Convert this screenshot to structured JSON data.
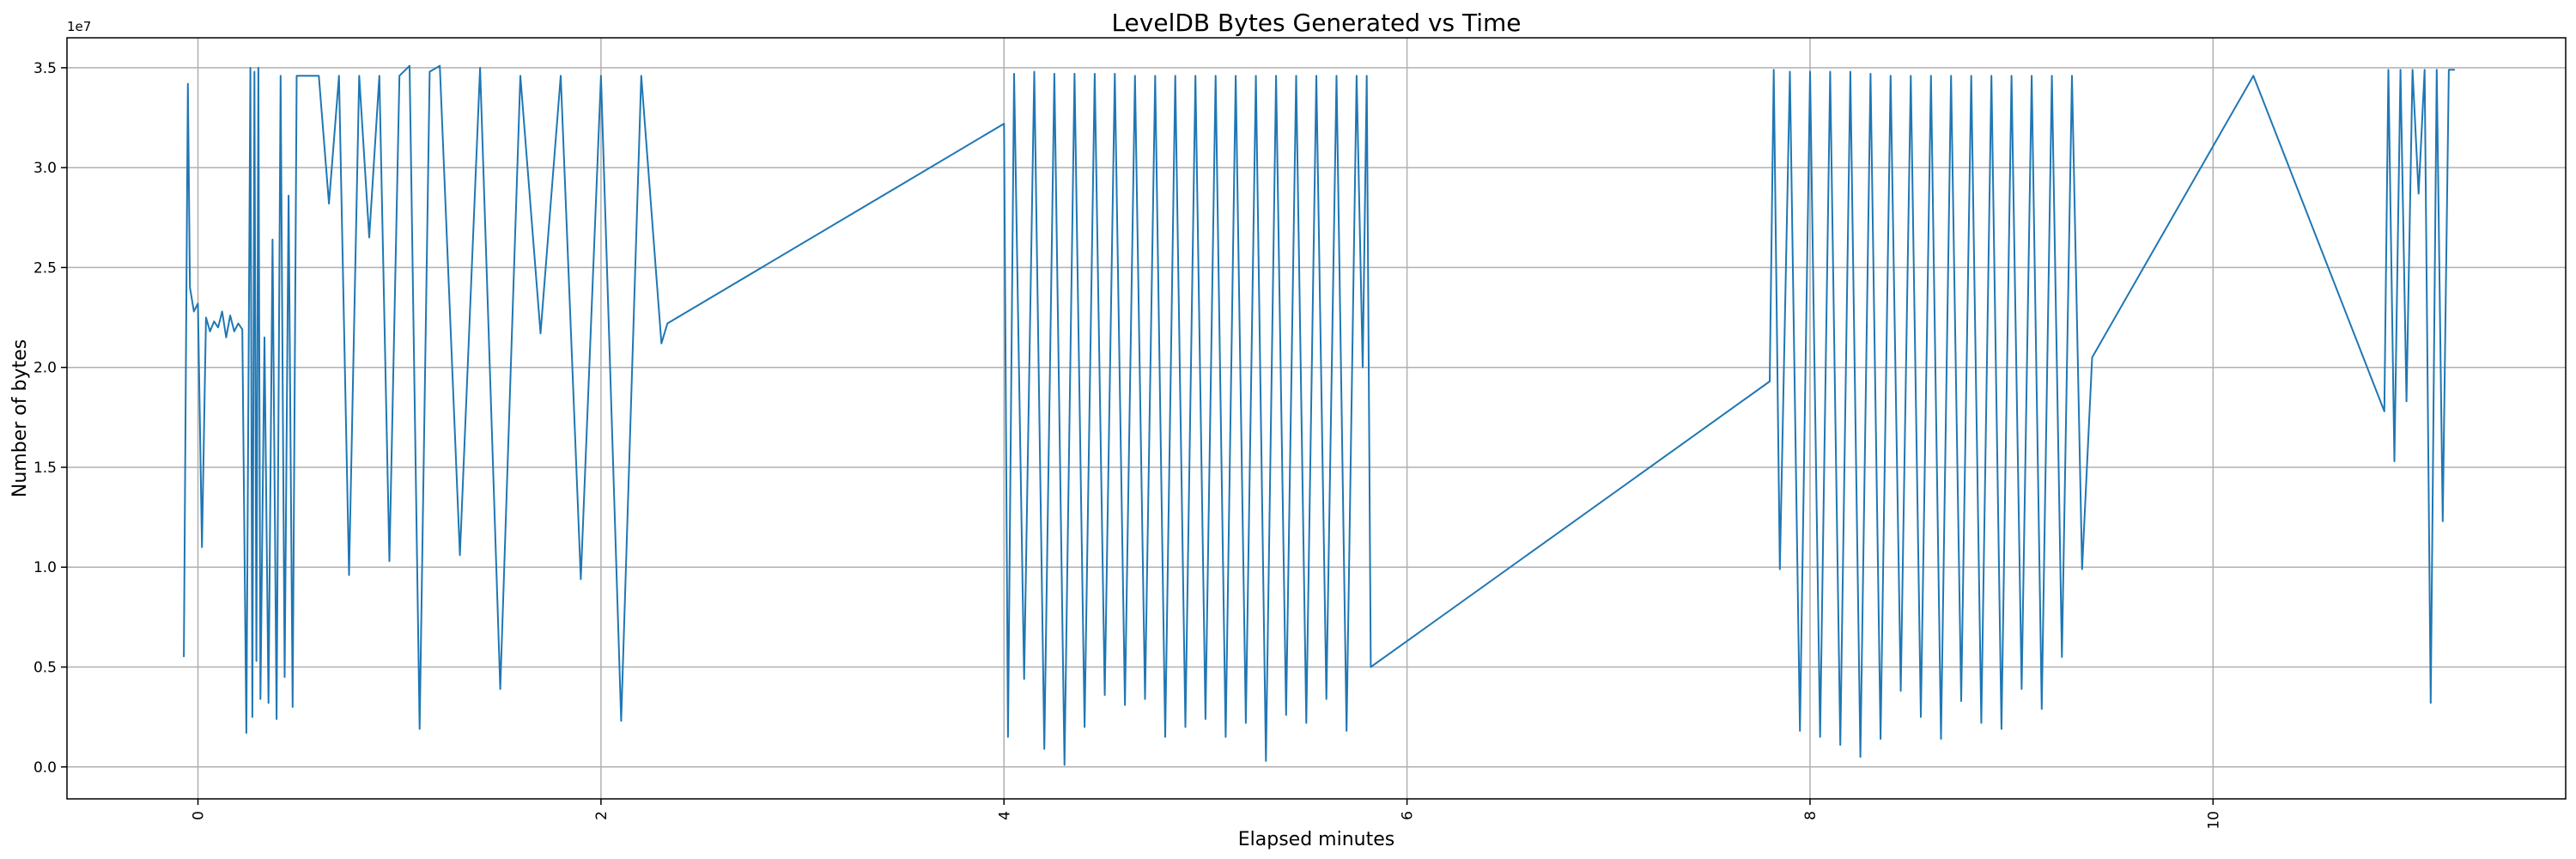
{
  "chart_data": {
    "type": "line",
    "title": "LevelDB Bytes Generated vs Time",
    "xlabel": "Elapsed minutes",
    "ylabel": "Number of bytes",
    "y_offset_label": "1e7",
    "xlim": [
      -0.65,
      11.75
    ],
    "ylim": [
      -1600000,
      36500000
    ],
    "x_ticks": [
      0,
      2,
      4,
      6,
      8,
      10
    ],
    "x_tick_labels": [
      "0",
      "2",
      "4",
      "6",
      "8",
      "10"
    ],
    "y_ticks": [
      0,
      5000000,
      10000000,
      15000000,
      20000000,
      25000000,
      30000000,
      35000000
    ],
    "y_tick_labels": [
      "0.0",
      "0.5",
      "1.0",
      "1.5",
      "2.0",
      "2.5",
      "3.0",
      "3.5"
    ],
    "grid": true,
    "line_color": "#1f77b4",
    "series": [
      {
        "name": "",
        "x": [
          -0.07,
          -0.05,
          -0.04,
          -0.02,
          0.0,
          0.02,
          0.04,
          0.06,
          0.08,
          0.1,
          0.12,
          0.14,
          0.16,
          0.18,
          0.2,
          0.22,
          0.24,
          0.26,
          0.27,
          0.28,
          0.29,
          0.3,
          0.31,
          0.33,
          0.35,
          0.37,
          0.39,
          0.41,
          0.43,
          0.45,
          0.47,
          0.49,
          0.51,
          0.53,
          0.55,
          0.6,
          0.65,
          0.7,
          0.75,
          0.8,
          0.85,
          0.9,
          0.95,
          1.0,
          1.05,
          1.1,
          1.15,
          1.2,
          1.3,
          1.4,
          1.5,
          1.6,
          1.7,
          1.8,
          1.9,
          2.0,
          2.1,
          2.2,
          2.3,
          2.33,
          4.0,
          4.02,
          4.05,
          4.1,
          4.15,
          4.2,
          4.25,
          4.3,
          4.35,
          4.4,
          4.45,
          4.5,
          4.55,
          4.6,
          4.65,
          4.7,
          4.75,
          4.8,
          4.85,
          4.9,
          4.95,
          5.0,
          5.05,
          5.1,
          5.15,
          5.2,
          5.25,
          5.3,
          5.35,
          5.4,
          5.45,
          5.5,
          5.55,
          5.6,
          5.65,
          5.7,
          5.75,
          5.78,
          5.8,
          5.82,
          7.8,
          7.82,
          7.85,
          7.9,
          7.95,
          8.0,
          8.05,
          8.1,
          8.15,
          8.2,
          8.25,
          8.3,
          8.35,
          8.4,
          8.45,
          8.5,
          8.55,
          8.6,
          8.65,
          8.7,
          8.75,
          8.8,
          8.85,
          8.9,
          8.95,
          9.0,
          9.05,
          9.1,
          9.15,
          9.2,
          9.25,
          9.3,
          9.35,
          9.4,
          10.2,
          10.85,
          10.87,
          10.9,
          10.93,
          10.96,
          10.99,
          11.02,
          11.05,
          11.08,
          11.11,
          11.14,
          11.17,
          11.2
        ],
        "values": [
          5500000,
          34200000,
          24000000,
          22800000,
          23200000,
          11000000,
          22500000,
          21800000,
          22300000,
          22000000,
          22800000,
          21500000,
          22600000,
          21800000,
          22200000,
          21900000,
          1700000,
          35000000,
          2500000,
          34800000,
          5300000,
          35000000,
          3400000,
          21500000,
          3200000,
          26400000,
          2400000,
          34600000,
          4500000,
          28600000,
          3000000,
          34600000,
          34600000,
          34600000,
          34600000,
          34600000,
          28200000,
          34600000,
          9600000,
          34600000,
          26500000,
          34600000,
          10300000,
          34600000,
          35100000,
          1900000,
          34800000,
          35100000,
          10600000,
          35000000,
          3900000,
          34600000,
          21700000,
          34600000,
          9400000,
          34600000,
          2300000,
          34600000,
          21200000,
          22200000,
          32200000,
          1500000,
          34700000,
          4400000,
          34800000,
          900000,
          34700000,
          100000,
          34700000,
          2000000,
          34700000,
          3600000,
          34700000,
          3100000,
          34600000,
          3400000,
          34600000,
          1500000,
          34600000,
          2000000,
          34600000,
          2400000,
          34600000,
          1500000,
          34600000,
          2200000,
          34600000,
          300000,
          34600000,
          2600000,
          34600000,
          2200000,
          34600000,
          3400000,
          34600000,
          1800000,
          34600000,
          20000000,
          34600000,
          5000000,
          19300000,
          34900000,
          9900000,
          34800000,
          1800000,
          34800000,
          1500000,
          34800000,
          1100000,
          34800000,
          500000,
          34700000,
          1400000,
          34600000,
          3800000,
          34600000,
          2500000,
          34600000,
          1400000,
          34600000,
          3300000,
          34600000,
          2200000,
          34600000,
          1900000,
          34600000,
          3900000,
          34600000,
          2900000,
          34600000,
          5500000,
          34600000,
          9900000,
          20500000,
          34600000,
          17800000,
          34900000,
          15300000,
          34900000,
          18300000,
          34900000,
          28700000,
          34900000,
          3200000,
          34900000,
          12300000,
          34900000,
          34900000
        ]
      }
    ]
  }
}
